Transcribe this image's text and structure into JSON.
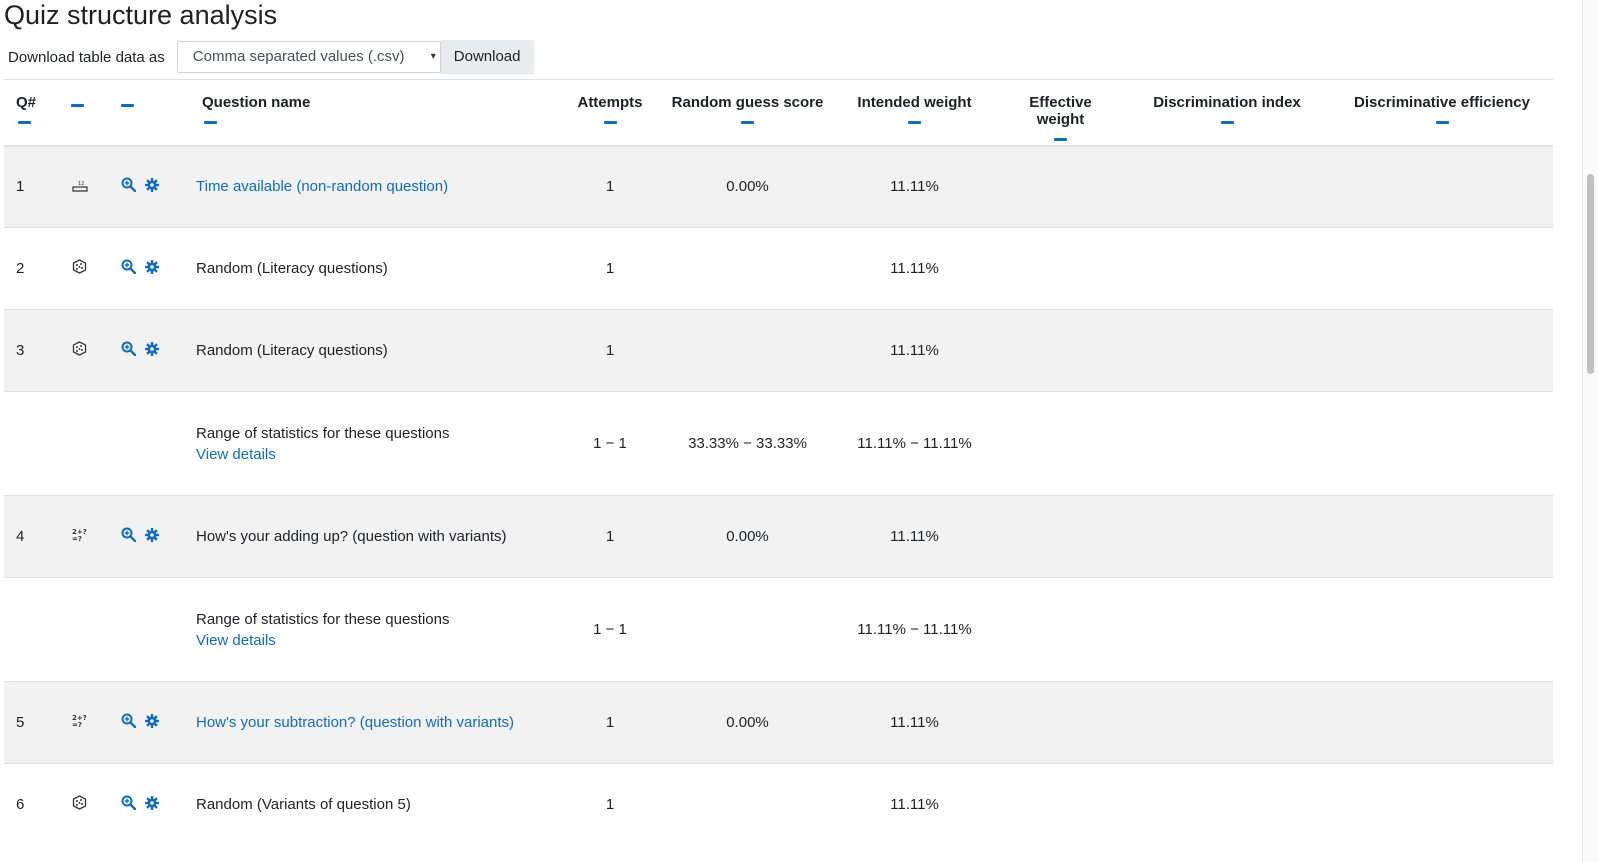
{
  "page": {
    "title": "Quiz structure analysis",
    "download_label": "Download table data as",
    "download_format": "Comma separated values (.csv)",
    "download_button": "Download"
  },
  "table": {
    "headers": [
      "Q#",
      "",
      "",
      "Question name",
      "Attempts",
      "Random guess score",
      "Intended weight",
      "Effective weight",
      "Discrimination index",
      "Discriminative efficiency"
    ],
    "rows": [
      {
        "kind": "question",
        "num": "1",
        "type_icon": "essay-icon",
        "name": "Time available (non-random question)",
        "is_link": true,
        "attempts": "1",
        "random_guess": "0.00%",
        "intended": "11.11%"
      },
      {
        "kind": "question",
        "num": "2",
        "type_icon": "random-dice-icon",
        "name": "Random (Literacy questions)",
        "is_link": false,
        "attempts": "1",
        "random_guess": "",
        "intended": "11.11%"
      },
      {
        "kind": "question",
        "num": "3",
        "type_icon": "random-dice-icon",
        "name": "Random (Literacy questions)",
        "is_link": false,
        "attempts": "1",
        "random_guess": "",
        "intended": "11.11%"
      },
      {
        "kind": "range",
        "name": "Range of statistics for these questions",
        "details": "View details",
        "attempts": "1 − 1",
        "random_guess": "33.33% − 33.33%",
        "intended": "11.11% − 11.11%"
      },
      {
        "kind": "question",
        "num": "4",
        "type_icon": "calculated-icon",
        "name": "How's your adding up? (question with variants)",
        "is_link": false,
        "attempts": "1",
        "random_guess": "0.00%",
        "intended": "11.11%"
      },
      {
        "kind": "range",
        "name": "Range of statistics for these questions",
        "details": "View details",
        "attempts": "1 − 1",
        "random_guess": "",
        "intended": "11.11% − 11.11%"
      },
      {
        "kind": "question",
        "num": "5",
        "type_icon": "calculated-icon",
        "name": "How's your subtraction? (question with variants)",
        "is_link": true,
        "attempts": "1",
        "random_guess": "0.00%",
        "intended": "11.11%"
      },
      {
        "kind": "question",
        "num": "6",
        "type_icon": "random-dice-icon",
        "name": "Random (Variants of question 5)",
        "is_link": false,
        "attempts": "1",
        "random_guess": "",
        "intended": "11.11%"
      }
    ]
  },
  "colors": {
    "link": "#0f6cbf",
    "stripe": "#f2f2f2"
  }
}
